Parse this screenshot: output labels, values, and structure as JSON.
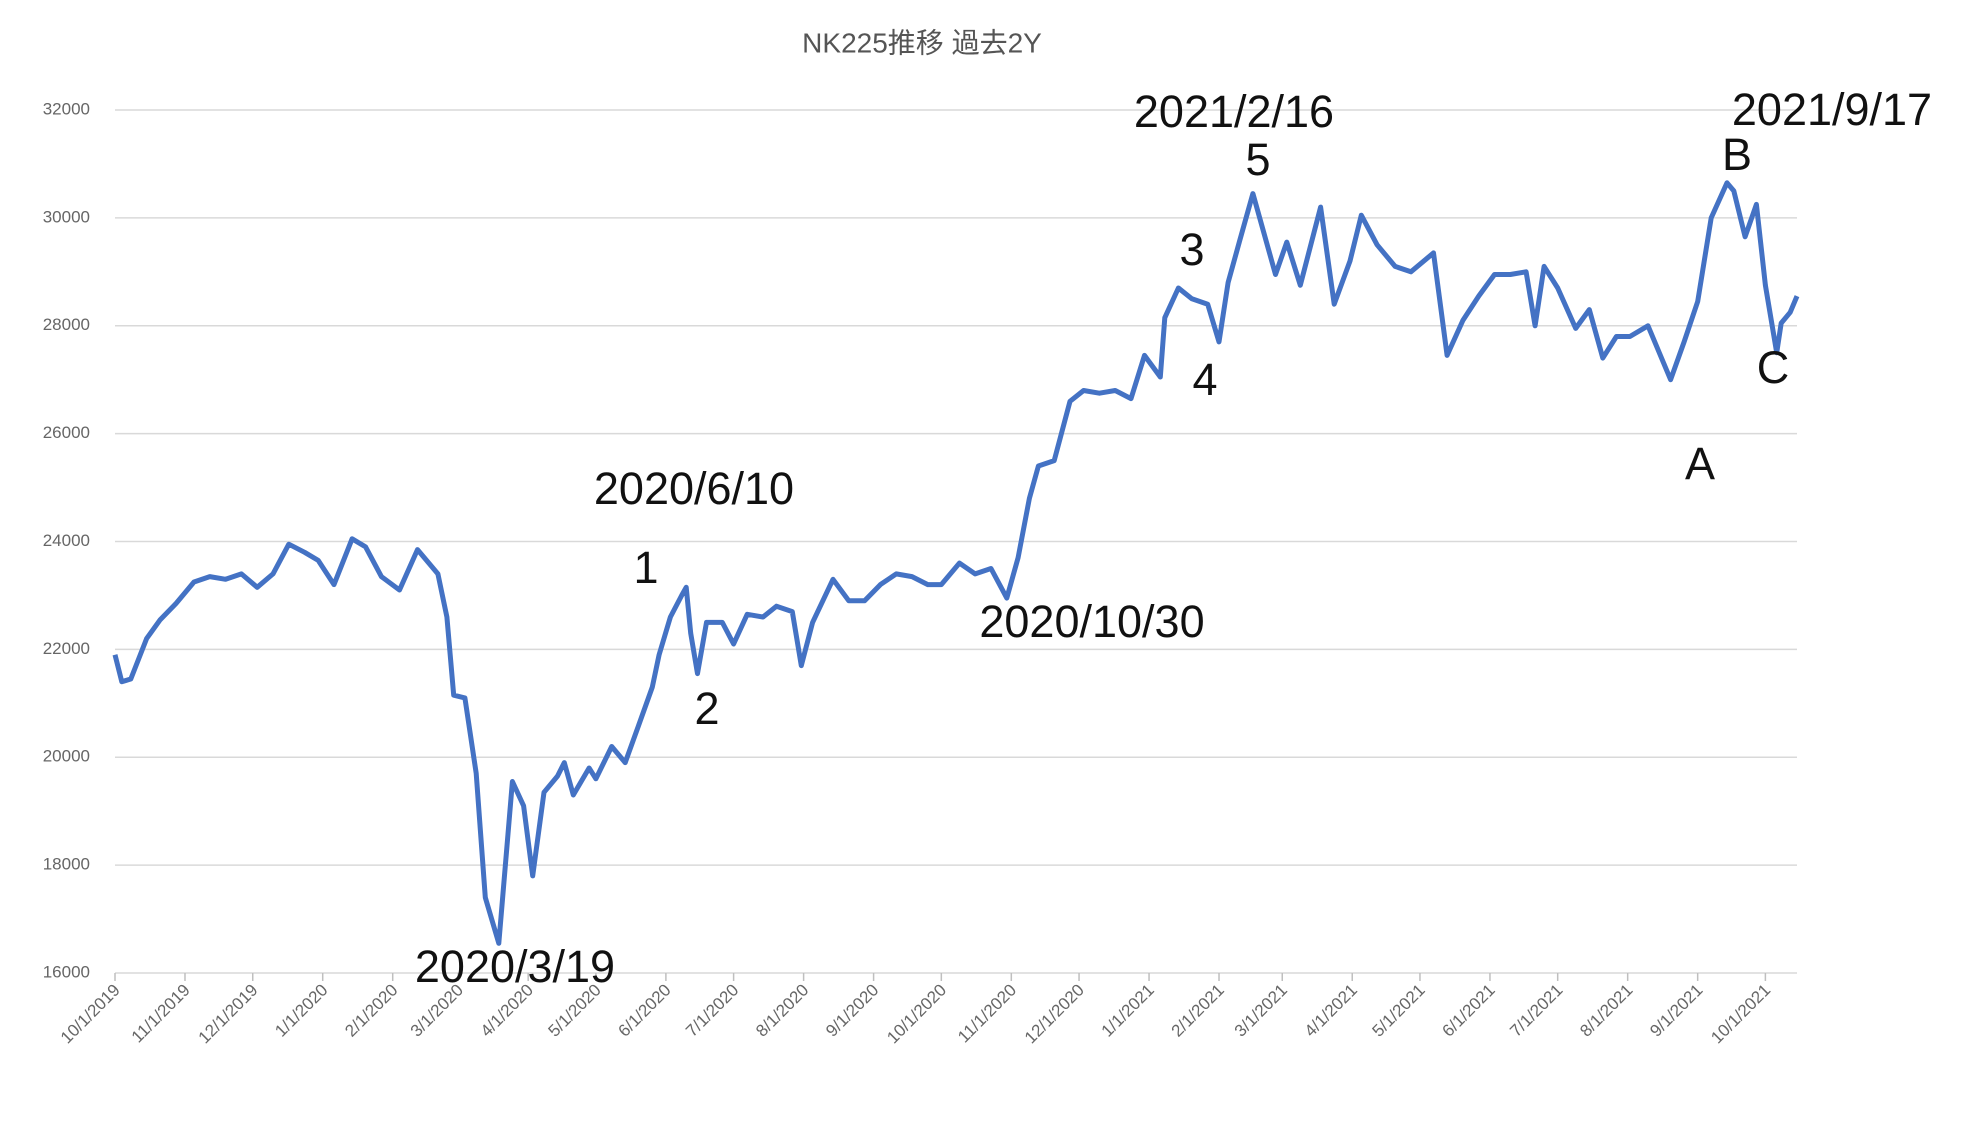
{
  "chart_data": {
    "type": "line",
    "title": "NK225推移 過去2Y",
    "color": "#4472c4",
    "grid": true,
    "x": [
      "2019-10-01",
      "2019-10-04",
      "2019-10-08",
      "2019-10-15",
      "2019-10-21",
      "2019-10-28",
      "2019-11-05",
      "2019-11-12",
      "2019-11-19",
      "2019-11-26",
      "2019-12-03",
      "2019-12-10",
      "2019-12-17",
      "2019-12-24",
      "2019-12-30",
      "2020-01-06",
      "2020-01-14",
      "2020-01-20",
      "2020-01-27",
      "2020-02-04",
      "2020-02-12",
      "2020-02-21",
      "2020-02-25",
      "2020-02-28",
      "2020-03-04",
      "2020-03-09",
      "2020-03-13",
      "2020-03-19",
      "2020-03-25",
      "2020-03-30",
      "2020-04-03",
      "2020-04-08",
      "2020-04-14",
      "2020-04-17",
      "2020-04-21",
      "2020-04-28",
      "2020-05-01",
      "2020-05-08",
      "2020-05-14",
      "2020-05-20",
      "2020-05-26",
      "2020-05-29",
      "2020-06-03",
      "2020-06-08",
      "2020-06-10",
      "2020-06-12",
      "2020-06-15",
      "2020-06-19",
      "2020-06-26",
      "2020-07-01",
      "2020-07-07",
      "2020-07-14",
      "2020-07-20",
      "2020-07-27",
      "2020-07-31",
      "2020-08-05",
      "2020-08-14",
      "2020-08-21",
      "2020-08-28",
      "2020-09-04",
      "2020-09-11",
      "2020-09-18",
      "2020-09-25",
      "2020-10-01",
      "2020-10-09",
      "2020-10-16",
      "2020-10-23",
      "2020-10-30",
      "2020-11-04",
      "2020-11-09",
      "2020-11-13",
      "2020-11-20",
      "2020-11-27",
      "2020-12-03",
      "2020-12-10",
      "2020-12-17",
      "2020-12-24",
      "2020-12-30",
      "2021-01-06",
      "2021-01-08",
      "2021-01-14",
      "2021-01-20",
      "2021-01-27",
      "2021-02-01",
      "2021-02-05",
      "2021-02-10",
      "2021-02-16",
      "2021-02-19",
      "2021-02-26",
      "2021-03-03",
      "2021-03-09",
      "2021-03-18",
      "2021-03-24",
      "2021-03-31",
      "2021-04-05",
      "2021-04-12",
      "2021-04-20",
      "2021-04-27",
      "2021-05-07",
      "2021-05-13",
      "2021-05-20",
      "2021-05-27",
      "2021-06-03",
      "2021-06-10",
      "2021-06-17",
      "2021-06-21",
      "2021-06-25",
      "2021-07-01",
      "2021-07-09",
      "2021-07-15",
      "2021-07-21",
      "2021-07-27",
      "2021-08-02",
      "2021-08-10",
      "2021-08-20",
      "2021-08-26",
      "2021-09-01",
      "2021-09-07",
      "2021-09-14",
      "2021-09-17",
      "2021-09-22",
      "2021-09-27",
      "2021-10-01",
      "2021-10-06",
      "2021-10-08",
      "2021-10-12",
      "2021-10-15"
    ],
    "values": [
      21900,
      21400,
      21450,
      22200,
      22550,
      22850,
      23250,
      23350,
      23300,
      23400,
      23150,
      23400,
      23950,
      23800,
      23650,
      23200,
      24050,
      23900,
      23350,
      23100,
      23850,
      23400,
      22600,
      21150,
      21100,
      19700,
      17400,
      16550,
      19550,
      19100,
      17800,
      19350,
      19650,
      19900,
      19300,
      19800,
      19600,
      20200,
      19900,
      20600,
      21300,
      21900,
      22600,
      23000,
      23150,
      22300,
      21550,
      22500,
      22500,
      22100,
      22650,
      22600,
      22800,
      22700,
      21700,
      22500,
      23300,
      22900,
      22900,
      23200,
      23400,
      23350,
      23200,
      23200,
      23600,
      23400,
      23500,
      22950,
      23700,
      24800,
      25400,
      25500,
      26600,
      26800,
      26750,
      26800,
      26650,
      27450,
      27050,
      28150,
      28700,
      28500,
      28400,
      27700,
      28800,
      29550,
      30450,
      30000,
      28950,
      29550,
      28750,
      30200,
      28400,
      29200,
      30050,
      29500,
      29100,
      29000,
      29350,
      27450,
      28100,
      28550,
      28950,
      28950,
      29000,
      28000,
      29100,
      28700,
      27950,
      28300,
      27400,
      27800,
      27800,
      28000,
      27000,
      27700,
      28450,
      30000,
      30650,
      30500,
      29650,
      30250,
      28750,
      27500,
      28050,
      28250,
      28550
    ],
    "xlim": [
      "2019-10-01",
      "2021-10-15"
    ],
    "xticks": [
      {
        "value": "2019-10-01",
        "label": "10/1/2019"
      },
      {
        "value": "2019-11-01",
        "label": "11/1/2019"
      },
      {
        "value": "2019-12-01",
        "label": "12/1/2019"
      },
      {
        "value": "2020-01-01",
        "label": "1/1/2020"
      },
      {
        "value": "2020-02-01",
        "label": "2/1/2020"
      },
      {
        "value": "2020-03-01",
        "label": "3/1/2020"
      },
      {
        "value": "2020-04-01",
        "label": "4/1/2020"
      },
      {
        "value": "2020-05-01",
        "label": "5/1/2020"
      },
      {
        "value": "2020-06-01",
        "label": "6/1/2020"
      },
      {
        "value": "2020-07-01",
        "label": "7/1/2020"
      },
      {
        "value": "2020-08-01",
        "label": "8/1/2020"
      },
      {
        "value": "2020-09-01",
        "label": "9/1/2020"
      },
      {
        "value": "2020-10-01",
        "label": "10/1/2020"
      },
      {
        "value": "2020-11-01",
        "label": "11/1/2020"
      },
      {
        "value": "2020-12-01",
        "label": "12/1/2020"
      },
      {
        "value": "2021-01-01",
        "label": "1/1/2021"
      },
      {
        "value": "2021-02-01",
        "label": "2/1/2021"
      },
      {
        "value": "2021-03-01",
        "label": "3/1/2021"
      },
      {
        "value": "2021-04-01",
        "label": "4/1/2021"
      },
      {
        "value": "2021-05-01",
        "label": "5/1/2021"
      },
      {
        "value": "2021-06-01",
        "label": "6/1/2021"
      },
      {
        "value": "2021-07-01",
        "label": "7/1/2021"
      },
      {
        "value": "2021-08-01",
        "label": "8/1/2021"
      },
      {
        "value": "2021-09-01",
        "label": "9/1/2021"
      },
      {
        "value": "2021-10-01",
        "label": "10/1/2021"
      }
    ],
    "ylim": [
      16000,
      32000
    ],
    "yticks": [
      16000,
      18000,
      20000,
      22000,
      24000,
      26000,
      28000,
      30000,
      32000
    ],
    "annotations": [
      "2021/2/16",
      "5",
      "2021/9/17",
      "B",
      "3",
      "4",
      "C",
      "A",
      "2020/6/10",
      "1",
      "2",
      "2020/10/30",
      "2020/3/19"
    ]
  }
}
